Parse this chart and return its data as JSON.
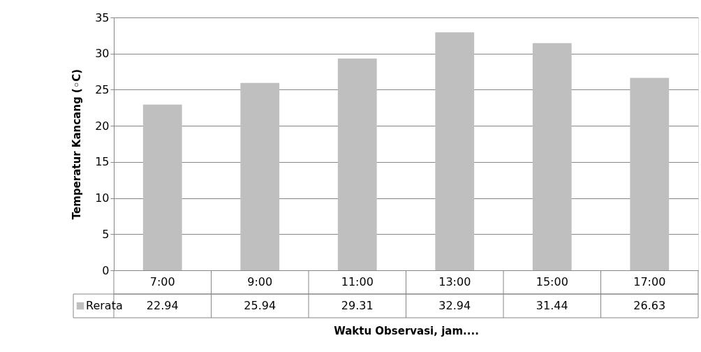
{
  "chart_data": {
    "type": "bar",
    "xlabel": "Waktu Observasi, jam....",
    "ylabel": "Temperatur Kancang (◦C)",
    "categories": [
      "7:00",
      "9:00",
      "11:00",
      "13:00",
      "15:00",
      "17:00"
    ],
    "series": [
      {
        "name": "Rerata",
        "color": "#bfbfbf",
        "values": [
          22.94,
          25.94,
          29.31,
          32.94,
          31.44,
          26.63
        ]
      }
    ],
    "ylim": [
      0,
      35
    ],
    "yticks": [
      0,
      5,
      10,
      15,
      20,
      25,
      30,
      35
    ],
    "grid": "y",
    "data_labels": true,
    "legend": "bottom"
  }
}
